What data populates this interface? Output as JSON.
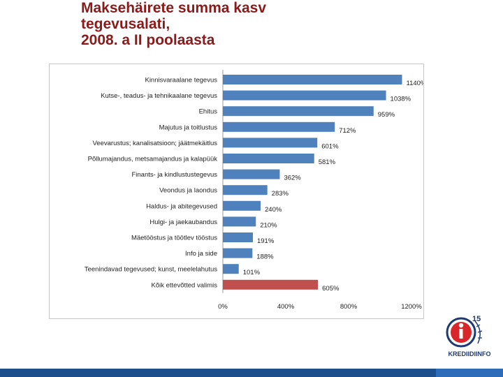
{
  "title": {
    "lines": [
      "Maksehäirete summa kasv",
      "tegevusalati,",
      "2008. a II poolaasta"
    ]
  },
  "colors": {
    "series": "#4f81bd",
    "total": "#c0504d",
    "title": "#8b1a1a",
    "footer": "#1f4e8c"
  },
  "chart_data": {
    "type": "bar",
    "orientation": "horizontal",
    "title": "",
    "xlabel": "",
    "ylabel": "",
    "xlim": [
      0,
      1200
    ],
    "ticks": [
      0,
      400,
      800,
      1200
    ],
    "tick_labels": [
      "0%",
      "400%",
      "800%",
      "1200%"
    ],
    "categories": [
      "Kinnisvaraalane tegevus",
      "Kutse-, teadus- ja tehnikaalane tegevus",
      "Ehitus",
      "Majutus ja toitlustus",
      "Veevarustus; kanalisatsioon; jäätmekäitlus",
      "Põllumajandus, metsamajandus ja kalapüük",
      "Finants- ja kindlustustegevus",
      "Veondus ja laondus",
      "Haldus- ja abitegevused",
      "Hulgi- ja jaekaubandus",
      "Mäetööstus ja töötlev tööstus",
      "Info ja side",
      "Teenindavad tegevused; kunst, meelelahutus",
      "Kõik ettevõtted valimis"
    ],
    "values": [
      1140,
      1038,
      959,
      712,
      601,
      581,
      362,
      283,
      240,
      210,
      191,
      188,
      101,
      605
    ],
    "value_labels": [
      "1140%",
      "1038%",
      "959%",
      "712%",
      "601%",
      "581%",
      "362%",
      "283%",
      "240%",
      "210%",
      "191%",
      "188%",
      "101%",
      "605%"
    ],
    "highlight": [
      false,
      false,
      false,
      false,
      false,
      false,
      false,
      false,
      false,
      false,
      false,
      false,
      false,
      true
    ]
  },
  "logo": {
    "badge_number": "15",
    "name": "KREDIIDIINFO"
  }
}
